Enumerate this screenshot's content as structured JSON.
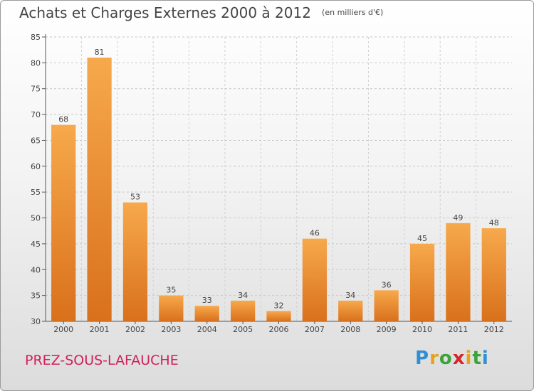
{
  "title": "Achats et Charges Externes 2000 à 2012",
  "unit_note": "(en milliers d'€)",
  "commune": "PREZ-SOUS-LAFAUCHE",
  "logo": {
    "letters": [
      "P",
      "r",
      "o",
      "x",
      "i",
      "t",
      "i"
    ],
    "colors": [
      "#2f8fd6",
      "#e8a21a",
      "#3aa33a",
      "#d42626",
      "#e8a21a",
      "#3aa33a",
      "#2f8fd6"
    ]
  },
  "colors": {
    "bar_light": "#f7a94c",
    "bar_dark": "#d9701c",
    "commune_text": "#d0205a"
  },
  "chart_data": {
    "type": "bar",
    "categories": [
      "2000",
      "2001",
      "2002",
      "2003",
      "2004",
      "2005",
      "2006",
      "2007",
      "2008",
      "2009",
      "2010",
      "2011",
      "2012"
    ],
    "values": [
      68,
      81,
      53,
      35,
      33,
      34,
      32,
      46,
      34,
      36,
      45,
      49,
      48
    ],
    "ylim": [
      30,
      85
    ],
    "yticks": [
      30,
      35,
      40,
      45,
      50,
      55,
      60,
      65,
      70,
      75,
      80,
      85
    ],
    "grid": true
  }
}
